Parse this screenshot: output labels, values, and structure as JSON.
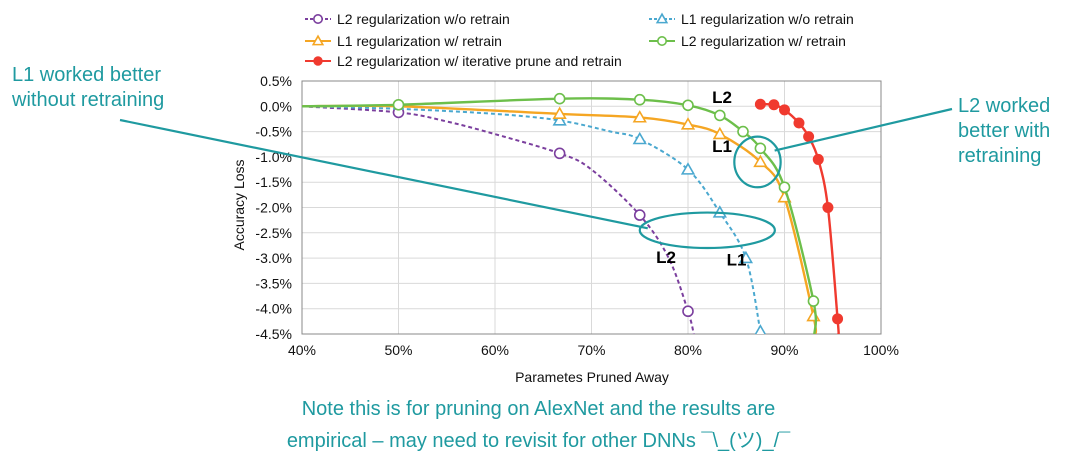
{
  "chart_data": {
    "type": "line",
    "xlabel": "Parametes Pruned Away",
    "ylabel": "Accuracy Loss",
    "xlim": [
      40,
      100
    ],
    "ylim": [
      -4.5,
      0.5
    ],
    "x_ticks": [
      "40%",
      "50%",
      "60%",
      "70%",
      "80%",
      "90%",
      "100%"
    ],
    "x_tick_values": [
      40,
      50,
      60,
      70,
      80,
      90,
      100
    ],
    "y_ticks": [
      "0.5%",
      "0.0%",
      "-0.5%",
      "-1.0%",
      "-1.5%",
      "-2.0%",
      "-2.5%",
      "-3.0%",
      "-3.5%",
      "-4.0%",
      "-4.5%"
    ],
    "y_tick_values": [
      0.5,
      0.0,
      -0.5,
      -1.0,
      -1.5,
      -2.0,
      -2.5,
      -3.0,
      -3.5,
      -4.0,
      -4.5
    ],
    "grid": true,
    "legend_position": "top",
    "series": [
      {
        "name": "L2 regularization w/o retrain",
        "color": "#7b3f9e",
        "marker": "circle",
        "dashed": true,
        "curve": [
          [
            40,
            0.0
          ],
          [
            50,
            -0.12
          ],
          [
            55,
            -0.3
          ],
          [
            60,
            -0.55
          ],
          [
            66.7,
            -0.93
          ],
          [
            70,
            -1.25
          ],
          [
            75,
            -2.15
          ],
          [
            78,
            -3.0
          ],
          [
            80,
            -4.05
          ],
          [
            80.6,
            -4.5
          ]
        ],
        "markers": [
          [
            50,
            -0.12
          ],
          [
            66.7,
            -0.93
          ],
          [
            75,
            -2.15
          ],
          [
            80,
            -4.05
          ]
        ]
      },
      {
        "name": "L1 regularization w/o retrain",
        "color": "#4aa8cf",
        "marker": "triangle",
        "dashed": true,
        "curve": [
          [
            40,
            0.0
          ],
          [
            50,
            -0.05
          ],
          [
            60,
            -0.15
          ],
          [
            66.7,
            -0.28
          ],
          [
            72,
            -0.5
          ],
          [
            75,
            -0.65
          ],
          [
            80,
            -1.25
          ],
          [
            83.3,
            -2.1
          ],
          [
            86,
            -3.0
          ],
          [
            87.5,
            -4.45
          ]
        ],
        "markers": [
          [
            66.7,
            -0.28
          ],
          [
            75,
            -0.65
          ],
          [
            80,
            -1.25
          ],
          [
            83.3,
            -2.1
          ],
          [
            86,
            -3.0
          ],
          [
            87.5,
            -4.45
          ]
        ]
      },
      {
        "name": "L1 regularization w/ retrain",
        "color": "#f5a623",
        "marker": "triangle",
        "dashed": false,
        "curve": [
          [
            40,
            0.0
          ],
          [
            50,
            0.0
          ],
          [
            66.7,
            -0.15
          ],
          [
            75,
            -0.22
          ],
          [
            80,
            -0.36
          ],
          [
            83.3,
            -0.55
          ],
          [
            87.5,
            -1.1
          ],
          [
            90,
            -1.8
          ],
          [
            93,
            -4.15
          ],
          [
            93.1,
            -4.5
          ]
        ],
        "markers": [
          [
            66.7,
            -0.15
          ],
          [
            75,
            -0.22
          ],
          [
            80,
            -0.36
          ],
          [
            83.3,
            -0.55
          ],
          [
            87.5,
            -1.1
          ],
          [
            90,
            -1.8
          ],
          [
            93,
            -4.15
          ]
        ]
      },
      {
        "name": "L2 regularization w/ retrain",
        "color": "#6dbf4b",
        "marker": "circle",
        "dashed": false,
        "curve": [
          [
            40,
            0.0
          ],
          [
            50,
            0.03
          ],
          [
            66.7,
            0.15
          ],
          [
            75,
            0.13
          ],
          [
            80,
            0.02
          ],
          [
            83.3,
            -0.18
          ],
          [
            85.7,
            -0.5
          ],
          [
            87.5,
            -0.83
          ],
          [
            90,
            -1.6
          ],
          [
            93,
            -3.85
          ],
          [
            93.1,
            -4.5
          ]
        ],
        "markers": [
          [
            50,
            0.03
          ],
          [
            66.7,
            0.15
          ],
          [
            75,
            0.13
          ],
          [
            80,
            0.02
          ],
          [
            83.3,
            -0.18
          ],
          [
            85.7,
            -0.5
          ],
          [
            87.5,
            -0.83
          ],
          [
            90,
            -1.6
          ],
          [
            93,
            -3.85
          ]
        ]
      },
      {
        "name": "L2 regularization w/ iterative prune and retrain",
        "color": "#f03a2f",
        "marker": "filled-circle",
        "dashed": false,
        "curve": [
          [
            87.5,
            0.04
          ],
          [
            88.9,
            0.03
          ],
          [
            90,
            -0.07
          ],
          [
            91.5,
            -0.33
          ],
          [
            92.5,
            -0.6
          ],
          [
            93.5,
            -1.05
          ],
          [
            94.5,
            -2.0
          ],
          [
            95.5,
            -4.2
          ],
          [
            95.6,
            -4.5
          ]
        ],
        "markers": [
          [
            87.5,
            0.04
          ],
          [
            88.9,
            0.03
          ],
          [
            90,
            -0.07
          ],
          [
            91.5,
            -0.33
          ],
          [
            92.5,
            -0.6
          ],
          [
            93.5,
            -1.05
          ],
          [
            94.5,
            -2.0
          ],
          [
            95.5,
            -4.2
          ]
        ]
      }
    ],
    "curve_labels": [
      {
        "text": "L2",
        "x": 82.5,
        "y": 0.07
      },
      {
        "text": "L1",
        "x": 82.5,
        "y": -0.9
      },
      {
        "text": "L2",
        "x": 76.7,
        "y": -3.1
      },
      {
        "text": "L1",
        "x": 84,
        "y": -3.15
      }
    ],
    "highlight_ellipses": [
      {
        "center": [
          82,
          -2.45
        ],
        "rx_units": 7.0,
        "ry_units": 0.35
      },
      {
        "center": [
          87.2,
          -1.1
        ],
        "rx_units": 2.4,
        "ry_units": 0.5
      }
    ]
  },
  "annotations": {
    "left": "L1 worked better without retraining",
    "right": "L2 worked better with retraining"
  },
  "note": {
    "line1": "Note this is for pruning on AlexNet and the results are",
    "line2": "empirical – may need to revisit for other DNNs ¯\\_(ツ)_/¯"
  },
  "colors": {
    "annotation": "#1f9aa0",
    "grid": "#d9d9d9",
    "axis": "#888888"
  }
}
